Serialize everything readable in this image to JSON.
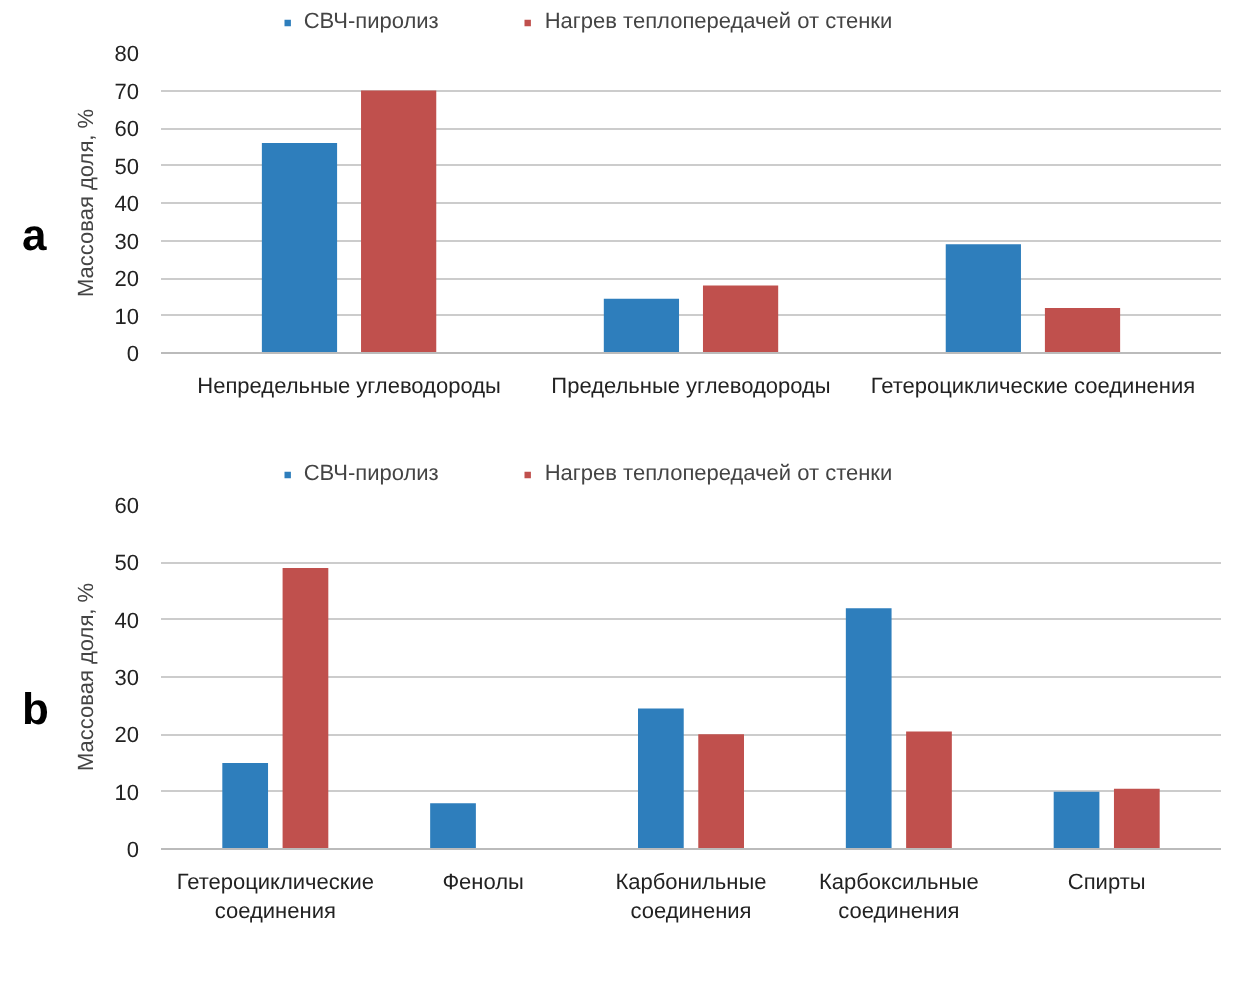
{
  "chart_data": [
    {
      "type": "bar",
      "ylabel": "Массовая доля, %",
      "annotations": [
        "a"
      ],
      "categories": [
        "Непредельные углеводороды",
        "Предельные углеводороды",
        "Гетероциклические соединения"
      ],
      "series": [
        {
          "name": "СВЧ-пиролиз",
          "color": "#2e7ebc",
          "values": [
            56,
            14.5,
            29
          ]
        },
        {
          "name": "Нагрев теплопередачей от стенки",
          "color": "#c0504d",
          "values": [
            70,
            18,
            12
          ]
        }
      ],
      "ylim": [
        0,
        80
      ],
      "yticks": [
        0,
        10,
        20,
        30,
        40,
        50,
        60,
        70,
        80
      ],
      "grid": "y",
      "legend": "top"
    },
    {
      "type": "bar",
      "ylabel": "Массовая доля, %",
      "annotations": [
        "b"
      ],
      "categories": [
        "Гетероциклические\nсоединения",
        "Фенолы",
        "Карбонильные\nсоединения",
        "Карбоксильные\nсоединения",
        "Спирты"
      ],
      "series": [
        {
          "name": "СВЧ-пиролиз",
          "color": "#2e7ebc",
          "values": [
            15,
            8,
            24.5,
            42,
            10
          ]
        },
        {
          "name": "Нагрев теплопередачей от стенки",
          "color": "#c0504d",
          "values": [
            49,
            null,
            20,
            20.5,
            10.5
          ]
        }
      ],
      "ylim": [
        0,
        60
      ],
      "yticks": [
        0,
        10,
        20,
        30,
        40,
        50,
        60
      ],
      "grid": "y",
      "legend": "top"
    }
  ]
}
